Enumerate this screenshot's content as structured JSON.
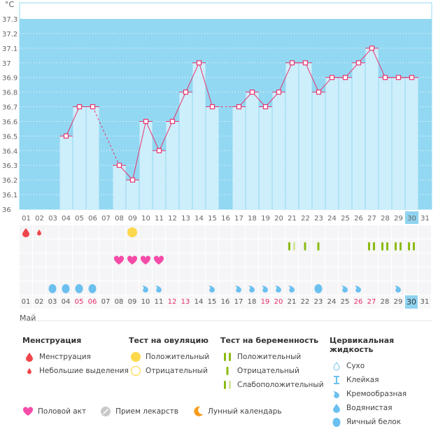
{
  "chart_data": {
    "type": "bar",
    "title": "",
    "ylabel": "°C",
    "xlabel": "",
    "ylim": [
      36.0,
      37.3
    ],
    "yticks": [
      "36",
      "36.1",
      "36.2",
      "36.3",
      "36.4",
      "36.5",
      "36.6",
      "36.7",
      "36.8",
      "36.9",
      "37",
      "37.1",
      "37.2",
      "37.3"
    ],
    "categories": [
      "01",
      "02",
      "03",
      "04",
      "05",
      "06",
      "07",
      "08",
      "09",
      "10",
      "11",
      "12",
      "13",
      "14",
      "15",
      "16",
      "17",
      "18",
      "19",
      "20",
      "21",
      "22",
      "23",
      "24",
      "25",
      "26",
      "27",
      "28",
      "29",
      "30",
      "31"
    ],
    "values": [
      null,
      null,
      null,
      36.5,
      36.7,
      36.7,
      null,
      36.3,
      36.2,
      36.6,
      36.4,
      36.6,
      36.8,
      37.0,
      36.7,
      null,
      36.7,
      36.8,
      36.7,
      36.8,
      37.0,
      37.0,
      36.8,
      36.9,
      36.9,
      37.0,
      37.1,
      36.9,
      36.9,
      36.9,
      null
    ],
    "grid": true,
    "highlighted_day": "30",
    "colors": {
      "background": "#93d8f2",
      "bar": "#cdeefb",
      "line": "#e8336e",
      "marker_fill": "#ffffff"
    }
  },
  "unit_label": "°C",
  "month_label": "Май",
  "days": [
    {
      "d": "01",
      "red": false
    },
    {
      "d": "02",
      "red": false
    },
    {
      "d": "03",
      "red": false
    },
    {
      "d": "04",
      "red": false
    },
    {
      "d": "05",
      "red": true
    },
    {
      "d": "06",
      "red": true
    },
    {
      "d": "07",
      "red": false
    },
    {
      "d": "08",
      "red": false
    },
    {
      "d": "09",
      "red": false
    },
    {
      "d": "10",
      "red": false
    },
    {
      "d": "11",
      "red": false
    },
    {
      "d": "12",
      "red": true
    },
    {
      "d": "13",
      "red": true
    },
    {
      "d": "14",
      "red": false
    },
    {
      "d": "15",
      "red": false
    },
    {
      "d": "16",
      "red": false
    },
    {
      "d": "17",
      "red": false
    },
    {
      "d": "18",
      "red": false
    },
    {
      "d": "19",
      "red": true
    },
    {
      "d": "20",
      "red": true
    },
    {
      "d": "21",
      "red": false
    },
    {
      "d": "22",
      "red": false
    },
    {
      "d": "23",
      "red": false
    },
    {
      "d": "24",
      "red": false
    },
    {
      "d": "25",
      "red": false
    },
    {
      "d": "26",
      "red": true
    },
    {
      "d": "27",
      "red": true
    },
    {
      "d": "28",
      "red": false
    },
    {
      "d": "29",
      "red": false
    },
    {
      "d": "30",
      "red": false
    },
    {
      "d": "31",
      "red": false
    }
  ],
  "rows": {
    "menstruation": {
      "01": "heavy",
      "02": "light",
      "09": "ovulation-positive"
    },
    "pregnancy": {
      "21": "weak",
      "22": "negative",
      "23": "negative",
      "27": "positive",
      "28": "positive",
      "29": "positive",
      "30": "positive"
    },
    "intercourse": [
      "08",
      "09",
      "10",
      "11"
    ],
    "fluid": {
      "03": "eggwhite",
      "04": "eggwhite",
      "05": "eggwhite",
      "06": "eggwhite",
      "10": "creamy",
      "11": "creamy",
      "15": "creamy",
      "17": "creamy",
      "18": "creamy",
      "19": "creamy",
      "20": "creamy",
      "21": "creamy",
      "23": "eggwhite",
      "25": "creamy",
      "26": "creamy",
      "29": "creamy"
    }
  },
  "legend": {
    "menstruation": {
      "title": "Менструация",
      "items": [
        "Менструация",
        "Небольшие выделения"
      ]
    },
    "ovulation": {
      "title": "Тест на овуляцию",
      "items": [
        "Положительный",
        "Отрицательный"
      ]
    },
    "pregnancy": {
      "title": "Тест на беременность",
      "items": [
        "Положительный",
        "Отрицательный",
        "Слабоположительный"
      ]
    },
    "fluid": {
      "title": "Цервикальная жидкость",
      "items": [
        "Сухо",
        "Клейкая",
        "Кремообразная",
        "Водянистая",
        "Яичный белок"
      ]
    },
    "bottom": [
      "Половой акт",
      "Прием лекарств",
      "Лунный календарь"
    ]
  }
}
